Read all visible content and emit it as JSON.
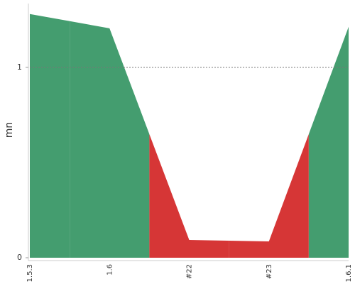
{
  "chart_data": {
    "type": "area",
    "y_label": "mn",
    "categories": [
      "1.5.3",
      "1.6",
      "#22",
      "#23",
      "1.6.1"
    ],
    "values": [
      1.28,
      1.205,
      0.093,
      0.086,
      1.213
    ],
    "point_colors": [
      "#449d6f",
      "#449d6f",
      "#d63636",
      "#d63636",
      "#449d6f"
    ],
    "ylim": [
      0,
      1.335
    ],
    "yticks": [
      0,
      1
    ],
    "reference_line": 1
  }
}
